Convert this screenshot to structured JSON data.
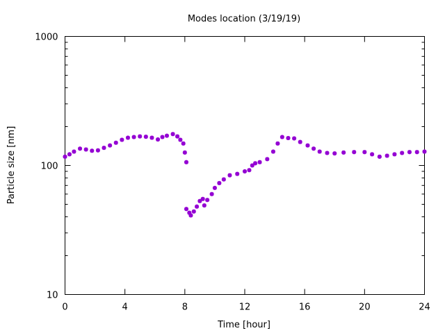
{
  "chart_data": {
    "type": "scatter",
    "title": "Modes location (3/19/19)",
    "xlabel": "Time [hour]",
    "ylabel": "Particle size [nm]",
    "xlim": [
      0,
      24
    ],
    "ylim": [
      10,
      1000
    ],
    "yscale": "log",
    "xticks": [
      "0",
      "4",
      "8",
      "12",
      "16",
      "20",
      "24"
    ],
    "yticks": [
      "10",
      "100",
      "1000"
    ],
    "grid": false,
    "marker_color": "#9400d3",
    "series": [
      {
        "name": "mode",
        "x": [
          0,
          0.3,
          0.6,
          1,
          1.4,
          1.8,
          2.2,
          2.6,
          3,
          3.4,
          3.8,
          4.2,
          4.6,
          5,
          5.4,
          5.8,
          6.2,
          6.5,
          6.8,
          7.2,
          7.5,
          7.7,
          7.9,
          8.0,
          8.1,
          8.1,
          8.3,
          8.4,
          8.6,
          8.8,
          9.0,
          9.2,
          9.3,
          9.5,
          9.8,
          10,
          10.3,
          10.6,
          11,
          11.5,
          12,
          12.3,
          12.5,
          12.7,
          13,
          13.5,
          13.9,
          14.2,
          14.5,
          14.9,
          15.3,
          15.7,
          16.2,
          16.6,
          17,
          17.5,
          18,
          18.6,
          19.3,
          20,
          20.5,
          21,
          21.5,
          22,
          22.5,
          23,
          23.5,
          24
        ],
        "y": [
          117,
          122,
          128,
          135,
          133,
          130,
          131,
          137,
          143,
          150,
          158,
          164,
          166,
          168,
          167,
          164,
          159,
          166,
          170,
          175,
          168,
          158,
          148,
          126,
          106,
          46,
          43,
          41,
          44,
          48,
          53,
          55,
          49,
          54,
          60,
          67,
          73,
          78,
          84,
          86,
          90,
          92,
          100,
          104,
          106,
          112,
          128,
          148,
          166,
          163,
          162,
          152,
          143,
          135,
          128,
          125,
          124,
          126,
          127,
          127,
          122,
          117,
          119,
          122,
          125,
          127,
          127,
          128
        ]
      }
    ]
  }
}
